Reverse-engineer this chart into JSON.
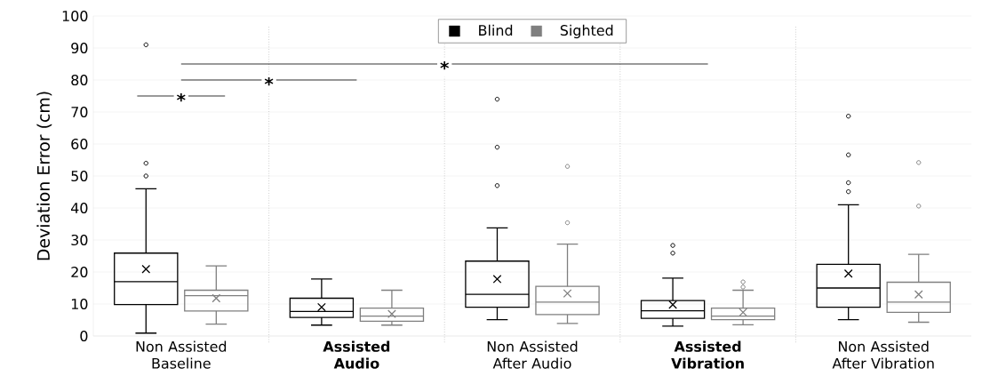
{
  "chart_data": {
    "type": "box",
    "categories": [
      "Non Assisted Baseline",
      "**Assisted Audio**",
      "Non Assisted After Audio",
      "**Assisted Vibration**",
      "Non Assisted After Vibration"
    ],
    "ylabel": "Deviation Error (cm)",
    "ylim": [
      0,
      100
    ],
    "yticks": [
      0,
      10,
      20,
      30,
      40,
      50,
      60,
      70,
      80,
      90,
      100
    ],
    "grid": "y",
    "legend": "top",
    "annotations": [
      "*",
      "*",
      "*"
    ],
    "series": [
      {
        "name": "Blind",
        "color": "#000000",
        "boxes": [
          {
            "low": 0.9,
            "q1": 9.8,
            "median": 17,
            "q3": 25.9,
            "high": 46,
            "mean": 20.9,
            "outliers": [
              91,
              54,
              50
            ]
          },
          {
            "low": 3.4,
            "q1": 5.8,
            "median": 7.7,
            "q3": 11.8,
            "high": 17.8,
            "mean": 9.0
          },
          {
            "low": 5.1,
            "q1": 9.0,
            "median": 13.0,
            "q3": 23.4,
            "high": 33.8,
            "mean": 17.8,
            "outliers": [
              74,
              59,
              47
            ]
          },
          {
            "low": 3.1,
            "q1": 5.5,
            "median": 7.9,
            "q3": 11.1,
            "high": 18.1,
            "mean": 9.8,
            "outliers": [
              28.3,
              25.9
            ]
          },
          {
            "low": 5.1,
            "q1": 9.0,
            "median": 15.0,
            "q3": 22.4,
            "high": 41,
            "mean": 19.5,
            "outliers": [
              68.7,
              56.6,
              47.9,
              45.1
            ]
          }
        ]
      },
      {
        "name": "Sighted",
        "color": "#7f7f7f",
        "boxes": [
          {
            "low": 3.7,
            "q1": 7.8,
            "median": 12.6,
            "q3": 14.3,
            "high": 21.9,
            "mean": 11.8
          },
          {
            "low": 3.4,
            "q1": 4.6,
            "median": 6.2,
            "q3": 8.7,
            "high": 14.3,
            "mean": 6.9
          },
          {
            "low": 3.9,
            "q1": 6.7,
            "median": 10.6,
            "q3": 15.5,
            "high": 28.7,
            "mean": 13.3,
            "outliers": [
              53,
              35.4
            ]
          },
          {
            "low": 3.5,
            "q1": 5.1,
            "median": 6.2,
            "q3": 8.7,
            "high": 14.3,
            "mean": 7.4,
            "outliers": [
              16.9,
              15.3
            ]
          },
          {
            "low": 4.3,
            "q1": 7.4,
            "median": 10.6,
            "q3": 16.8,
            "high": 25.5,
            "mean": 13.0,
            "outliers": [
              54.2,
              40.6
            ]
          }
        ]
      }
    ]
  }
}
